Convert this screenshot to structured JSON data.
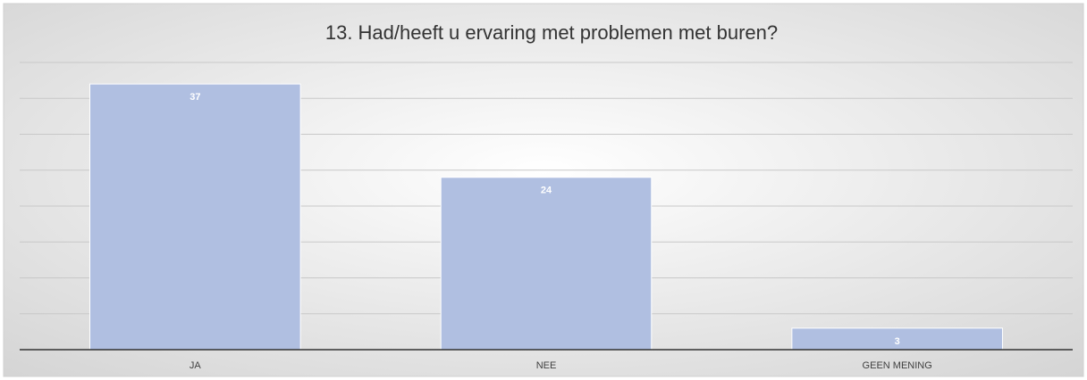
{
  "chart_data": {
    "type": "bar",
    "title": "13. Had/heeft u ervaring met problemen met buren?",
    "categories": [
      "JA",
      "NEE",
      "GEEN MENING"
    ],
    "values": [
      37,
      24,
      3
    ],
    "color": "#b0bfe1",
    "ylim": [
      0,
      40
    ],
    "yticks": [
      0,
      5,
      10,
      15,
      20,
      25,
      30,
      35,
      40
    ],
    "grid": true
  }
}
